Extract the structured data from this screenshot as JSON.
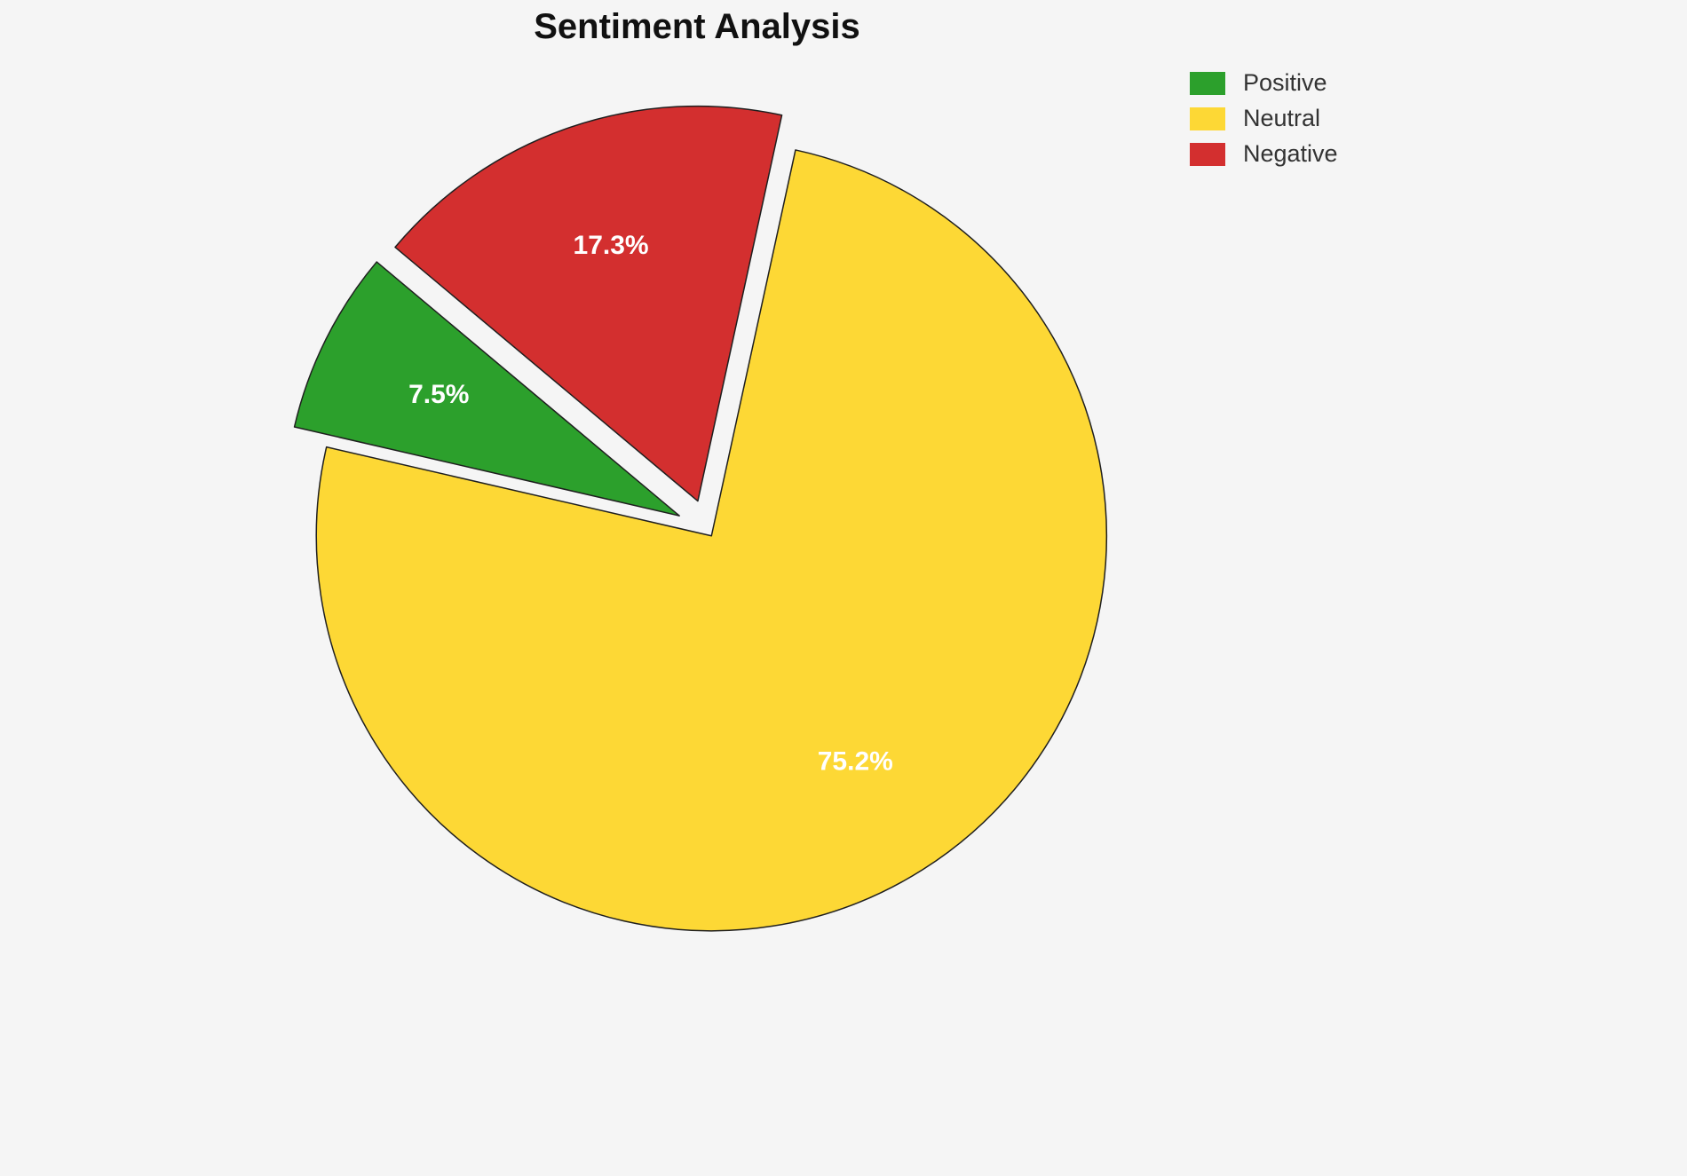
{
  "chart_data": {
    "type": "pie",
    "title": "Sentiment Analysis",
    "labels": [
      "Positive",
      "Neutral",
      "Negative"
    ],
    "values": [
      7.5,
      75.2,
      17.3
    ],
    "pct_labels": [
      "7.5%",
      "75.2%",
      "17.3%"
    ],
    "colors": [
      "#2ca02c",
      "#fdd835",
      "#d32f2f"
    ],
    "edge_color": "#1f1f1f",
    "background": "#f5f5f5",
    "start_angle": 140,
    "direction": "counterclockwise",
    "explode": [
      0.08,
      0.018,
      0.077
    ],
    "pct_distance": 0.68,
    "legend_position": "upper right",
    "center": [
      797,
      597
    ],
    "radius": 445
  }
}
